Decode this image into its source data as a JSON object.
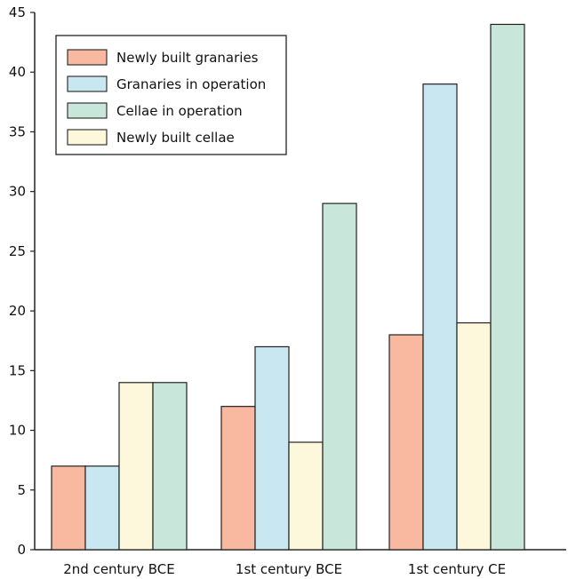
{
  "chart_data": {
    "type": "bar",
    "categories": [
      "2nd century BCE",
      "1st century BCE",
      "1st century CE"
    ],
    "ylim": [
      0,
      45
    ],
    "yticks": [
      0,
      5,
      10,
      15,
      20,
      25,
      30,
      35,
      40,
      45
    ],
    "grid": false,
    "legend_position": "top-left",
    "xlabel": "",
    "ylabel": "",
    "title": "",
    "series": [
      {
        "name": "Newly built granaries",
        "color": "#f8b9a0",
        "values": [
          7,
          12,
          18
        ]
      },
      {
        "name": "Granaries in operation",
        "color": "#c8e7f1",
        "values": [
          7,
          17,
          39
        ]
      },
      {
        "name": "Newly built cellae",
        "color": "#fdf8dc",
        "values": [
          14,
          9,
          19
        ]
      },
      {
        "name": "Cellae in operation",
        "color": "#c9e6db",
        "values": [
          14,
          29,
          44
        ]
      }
    ],
    "legend_order": [
      "Newly built granaries",
      "Granaries in operation",
      "Cellae in operation",
      "Newly built cellae"
    ]
  }
}
